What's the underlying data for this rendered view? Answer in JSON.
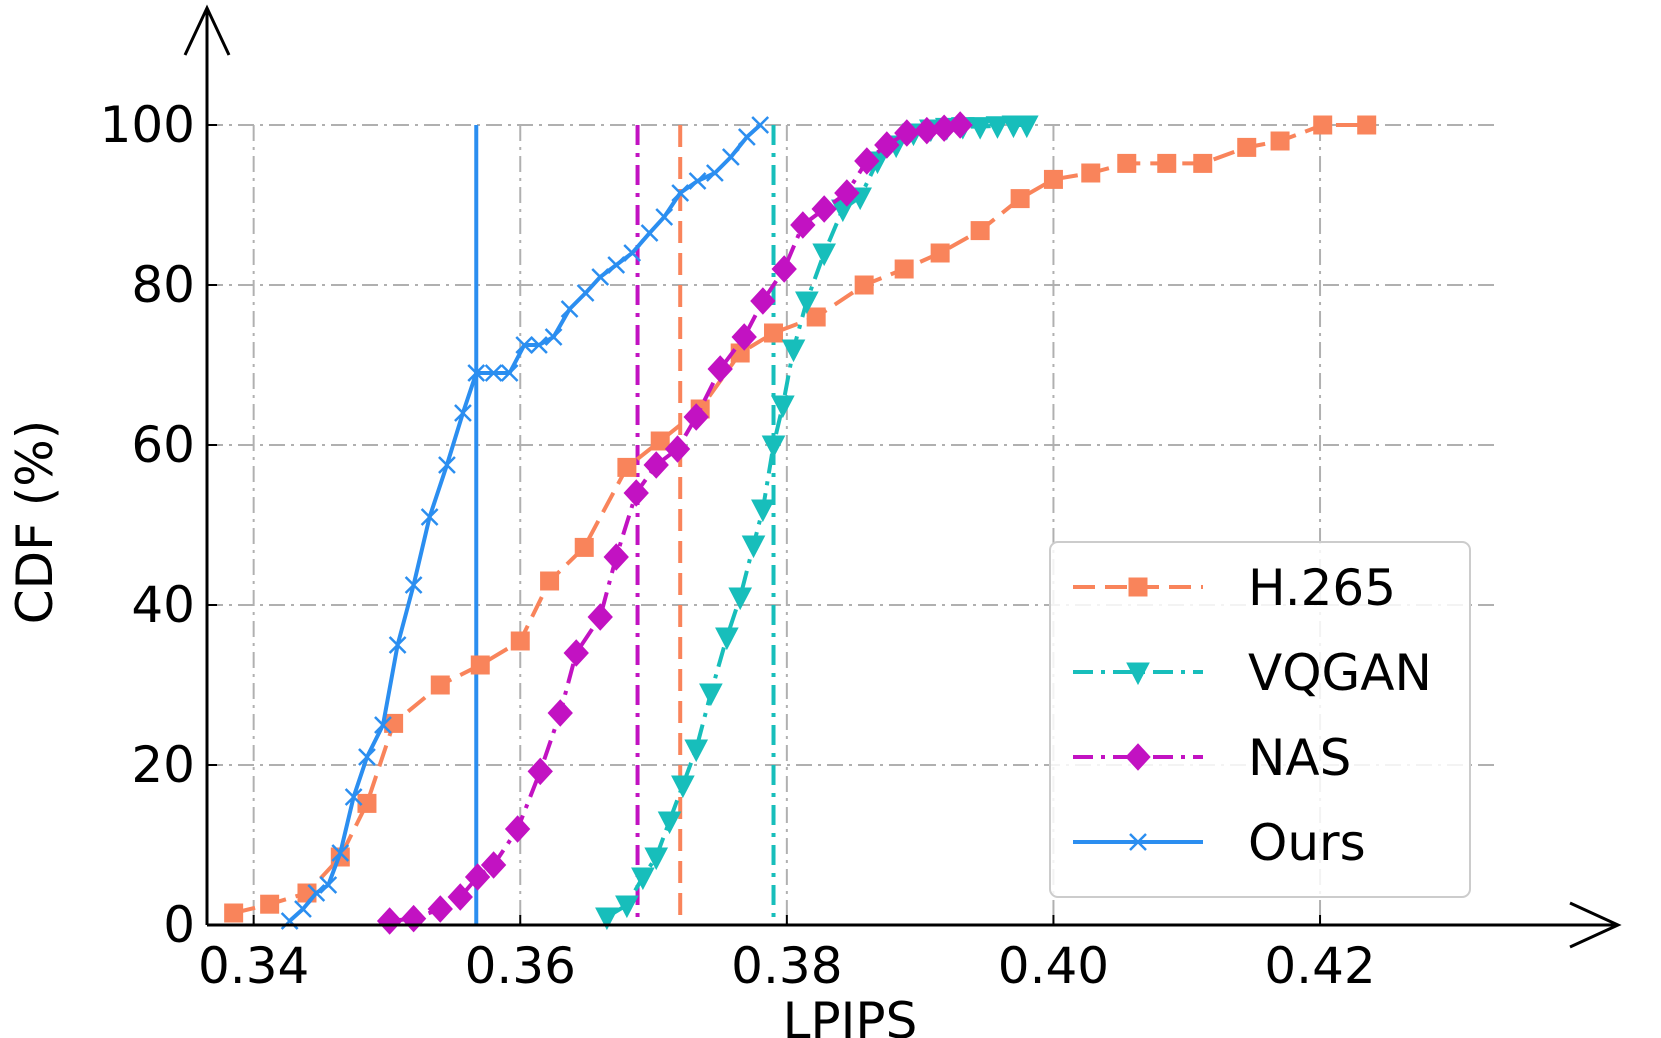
{
  "chart_data": {
    "type": "line",
    "title": "",
    "xlabel": "LPIPS",
    "ylabel": "CDF (%)",
    "xlim": [
      0.3365,
      0.4335
    ],
    "ylim": [
      0,
      100
    ],
    "xticks": [
      0.34,
      0.36,
      0.38,
      0.4,
      0.42
    ],
    "xtick_labels": [
      "0.34",
      "0.36",
      "0.38",
      "0.40",
      "0.42"
    ],
    "yticks": [
      0,
      20,
      40,
      60,
      80,
      100
    ],
    "ytick_labels": [
      "0",
      "20",
      "40",
      "60",
      "80",
      "100"
    ],
    "grid": true,
    "legend_position": "lower-right",
    "series": [
      {
        "name": "H.265",
        "color": "#F9845B",
        "linestyle": "dashed",
        "marker": "square",
        "mean_line": 0.372,
        "x": [
          0.3385,
          0.3412,
          0.344,
          0.3465,
          0.3485,
          0.3505,
          0.354,
          0.357,
          0.36,
          0.3622,
          0.3648,
          0.368,
          0.3705,
          0.3735,
          0.3765,
          0.379,
          0.3822,
          0.3858,
          0.3888,
          0.3915,
          0.3945,
          0.3975,
          0.4,
          0.4028,
          0.4055,
          0.4085,
          0.4112,
          0.4145,
          0.417,
          0.4202,
          0.4235
        ],
        "y": [
          1.5,
          2.6,
          4.0,
          8.5,
          15.2,
          25.2,
          30.0,
          32.5,
          35.5,
          43.0,
          47.2,
          57.2,
          60.5,
          64.5,
          71.5,
          74.0,
          76.0,
          80.0,
          82.0,
          84.0,
          86.8,
          90.8,
          93.2,
          94.0,
          95.2,
          95.2,
          95.2,
          97.2,
          98.0,
          100.0,
          100.0
        ]
      },
      {
        "name": "VQGAN",
        "color": "#17BEBB",
        "linestyle": "dashdot",
        "marker": "triangle-down",
        "mean_line": 0.379,
        "x": [
          0.3665,
          0.368,
          0.3692,
          0.3702,
          0.3712,
          0.3722,
          0.3732,
          0.3743,
          0.3755,
          0.3765,
          0.3775,
          0.3782,
          0.379,
          0.3797,
          0.3805,
          0.3815,
          0.3828,
          0.3842,
          0.3855,
          0.3868,
          0.3882,
          0.3895,
          0.3908,
          0.392,
          0.3932,
          0.3945,
          0.3958,
          0.397,
          0.398
        ],
        "y": [
          1.0,
          2.5,
          6.0,
          8.5,
          13.0,
          17.5,
          22.0,
          29.0,
          36.0,
          41.0,
          47.5,
          52.0,
          60.0,
          65.0,
          72.0,
          78.0,
          84.0,
          89.5,
          91.0,
          95.5,
          97.5,
          99.0,
          99.5,
          99.7,
          99.8,
          99.8,
          99.9,
          100.0,
          100.0
        ]
      },
      {
        "name": "NAS",
        "color": "#C212C2",
        "linestyle": "dashdot",
        "marker": "diamond",
        "mean_line": 0.3688,
        "x": [
          0.3502,
          0.352,
          0.354,
          0.3555,
          0.3568,
          0.358,
          0.3598,
          0.3615,
          0.363,
          0.3642,
          0.366,
          0.3672,
          0.3687,
          0.3702,
          0.3718,
          0.3732,
          0.375,
          0.3768,
          0.3782,
          0.3798,
          0.3812,
          0.3828,
          0.3845,
          0.386,
          0.3875,
          0.389,
          0.3905,
          0.3918,
          0.393
        ],
        "y": [
          0.5,
          0.8,
          2.0,
          3.5,
          6.0,
          7.5,
          12.0,
          19.2,
          26.5,
          34.0,
          38.5,
          46.0,
          54.0,
          57.5,
          59.5,
          63.5,
          69.5,
          73.5,
          78.0,
          82.0,
          87.5,
          89.5,
          91.5,
          95.5,
          97.5,
          99.0,
          99.3,
          99.6,
          100.0
        ]
      },
      {
        "name": "Ours",
        "color": "#2B8EF0",
        "linestyle": "solid",
        "marker": "x",
        "mean_line": 0.3567,
        "x": [
          0.3427,
          0.3437,
          0.3447,
          0.3456,
          0.3465,
          0.3475,
          0.3485,
          0.3497,
          0.3508,
          0.352,
          0.3532,
          0.3545,
          0.3557,
          0.3567,
          0.358,
          0.3592,
          0.3603,
          0.3614,
          0.3625,
          0.3637,
          0.3649,
          0.366,
          0.3672,
          0.3684,
          0.3697,
          0.3708,
          0.372,
          0.3733,
          0.3746,
          0.3758,
          0.377,
          0.378
        ],
        "y": [
          0.5,
          2.0,
          4.0,
          5.0,
          9.0,
          16.0,
          21.0,
          25.0,
          35.0,
          42.5,
          51.0,
          57.5,
          64.0,
          69.0,
          69.0,
          69.0,
          72.5,
          72.5,
          73.5,
          77.0,
          79.0,
          81.0,
          82.5,
          84.0,
          86.5,
          88.5,
          91.5,
          93.0,
          94.0,
          96.0,
          98.5,
          100.0
        ]
      }
    ]
  }
}
